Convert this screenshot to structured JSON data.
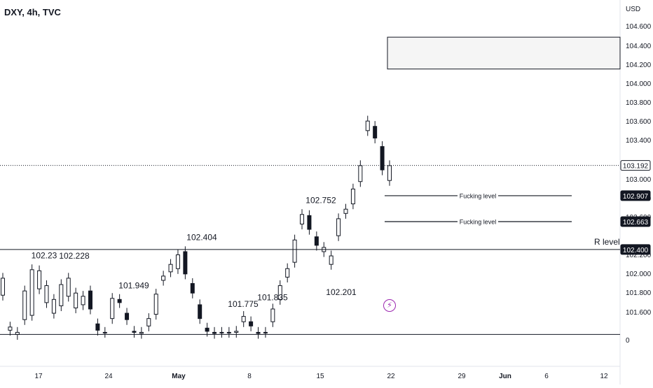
{
  "header": {
    "symbol_title": "DXY, 4h, TVC"
  },
  "price_axis": {
    "currency": "USD",
    "ticks": [
      "104.600",
      "104.400",
      "104.200",
      "104.000",
      "103.800",
      "103.600",
      "103.400",
      "103.000",
      "102.800",
      "102.600",
      "102.200",
      "102.000",
      "101.800",
      "101.600",
      "0"
    ],
    "tags": [
      {
        "label": "103.192",
        "style": "light"
      },
      {
        "label": "102.907",
        "style": "dark"
      },
      {
        "label": "102.663",
        "style": "dark"
      },
      {
        "label": "102.400",
        "style": "dark"
      }
    ]
  },
  "time_axis": {
    "ticks": [
      "17",
      "24",
      "May",
      "8",
      "15",
      "22",
      "29",
      "Jun",
      "6",
      "12"
    ]
  },
  "drawings": {
    "r_level_label": "R level",
    "level_label_1": "Fucking level",
    "level_label_2": "Fucking level"
  },
  "chart_data": {
    "type": "candlestick",
    "title": "DXY, 4h, TVC",
    "y_unit": "USD",
    "ylim": [
      101.3,
      104.75
    ],
    "horizontal_lines": [
      {
        "label": "R level",
        "value": 102.4
      },
      {
        "label": "",
        "value": 101.6
      },
      {
        "label": "Fucking level",
        "value": 102.907
      },
      {
        "label": "Fucking level",
        "value": 102.663
      },
      {
        "label": "",
        "value": 103.192,
        "style": "dotted"
      }
    ],
    "zone": {
      "y_top": 104.4,
      "y_bottom": 104.1
    },
    "annotations": [
      {
        "text": "102.23",
        "value": 102.23
      },
      {
        "text": "102.228",
        "value": 102.228
      },
      {
        "text": "102.404",
        "value": 102.404
      },
      {
        "text": "101.949",
        "value": 101.949
      },
      {
        "text": "101.775",
        "value": 101.775
      },
      {
        "text": "101.835",
        "value": 101.835
      },
      {
        "text": "102.752",
        "value": 102.752
      },
      {
        "text": "102.201",
        "value": 102.201
      }
    ],
    "price_path": [
      [
        101.97,
        102.13
      ],
      [
        101.64,
        101.67
      ],
      [
        101.6,
        101.62
      ],
      [
        101.74,
        102.01
      ],
      [
        101.78,
        102.21
      ],
      [
        102.03,
        102.2
      ],
      [
        101.9,
        102.06
      ],
      [
        101.8,
        101.93
      ],
      [
        101.87,
        102.07
      ],
      [
        101.96,
        102.13
      ],
      [
        101.85,
        101.99
      ],
      [
        101.88,
        101.96
      ],
      [
        102.01,
        101.84
      ],
      [
        101.7,
        101.64
      ],
      [
        101.62,
        101.62
      ],
      [
        101.75,
        101.94
      ],
      [
        101.93,
        101.9
      ],
      [
        101.8,
        101.74
      ],
      [
        101.63,
        101.62
      ],
      [
        101.61,
        101.62
      ],
      [
        101.68,
        101.75
      ],
      [
        101.79,
        101.98
      ],
      [
        102.11,
        102.15
      ],
      [
        102.19,
        102.26
      ],
      [
        102.22,
        102.35
      ],
      [
        102.38,
        102.17
      ],
      [
        102.08,
        101.99
      ],
      [
        101.88,
        101.75
      ],
      [
        101.66,
        101.63
      ],
      [
        101.62,
        101.61
      ],
      [
        101.62,
        101.62
      ],
      [
        101.62,
        101.62
      ],
      [
        101.62,
        101.63
      ],
      [
        101.72,
        101.77
      ],
      [
        101.72,
        101.68
      ],
      [
        101.62,
        101.61
      ],
      [
        101.62,
        101.62
      ],
      [
        101.72,
        101.84
      ],
      [
        101.93,
        102.06
      ],
      [
        102.14,
        102.22
      ],
      [
        102.28,
        102.49
      ],
      [
        102.64,
        102.73
      ],
      [
        102.72,
        102.59
      ],
      [
        102.52,
        102.44
      ],
      [
        102.38,
        102.42
      ],
      [
        102.26,
        102.34
      ],
      [
        102.53,
        102.69
      ],
      [
        102.74,
        102.78
      ],
      [
        102.83,
        102.97
      ],
      [
        103.04,
        103.19
      ],
      [
        103.52,
        103.61
      ],
      [
        103.56,
        103.45
      ],
      [
        103.37,
        103.15
      ],
      [
        103.05,
        103.19
      ]
    ]
  }
}
